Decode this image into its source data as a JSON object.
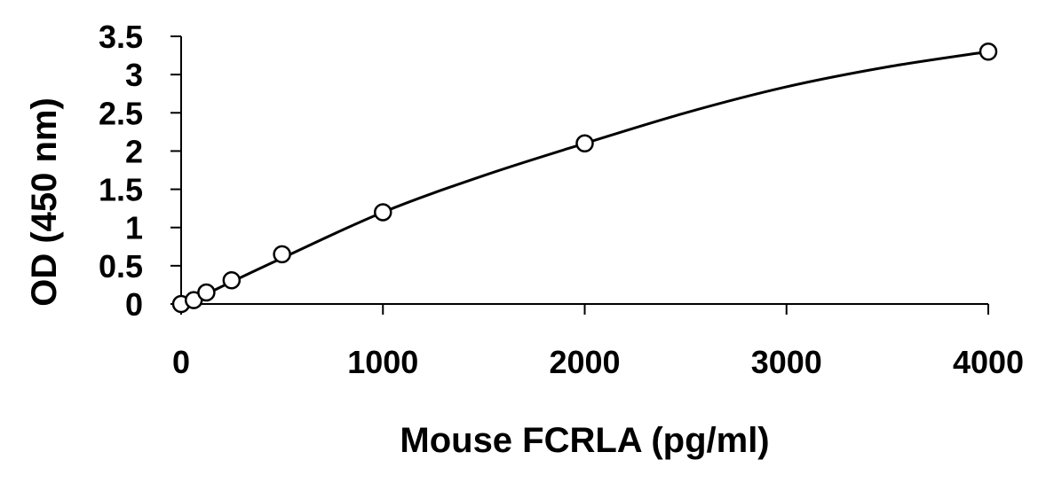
{
  "chart_data": {
    "type": "scatter",
    "title": "",
    "xlabel": "Mouse FCRLA (pg/ml)",
    "ylabel": "OD (450 nm)",
    "xlim": [
      0,
      4000
    ],
    "ylim": [
      0,
      3.5
    ],
    "x_ticks": [
      0,
      1000,
      2000,
      3000,
      4000
    ],
    "y_ticks": [
      0,
      0.5,
      1,
      1.5,
      2,
      2.5,
      3,
      3.5
    ],
    "x_tick_labels": [
      "0",
      "1000",
      "2000",
      "3000",
      "4000"
    ],
    "y_tick_labels": [
      "0",
      "0.5",
      "1",
      "1.5",
      "2",
      "2.5",
      "3",
      "3.5"
    ],
    "grid": false,
    "legend": "none",
    "series": [
      {
        "marker": "open-circle",
        "x": [
          0,
          62.5,
          125,
          250,
          500,
          1000,
          2000,
          4000
        ],
        "y": [
          0.0,
          0.05,
          0.15,
          0.31,
          0.65,
          1.2,
          2.1,
          3.3
        ]
      }
    ],
    "fit_curve": {
      "kind": "smooth fit through points",
      "x": [
        0,
        62.5,
        125,
        250,
        500,
        1000,
        1500,
        2000,
        2500,
        3000,
        3500,
        4000
      ],
      "y": [
        0.0,
        0.06,
        0.13,
        0.29,
        0.6,
        1.2,
        1.68,
        2.1,
        2.5,
        2.84,
        3.1,
        3.3
      ]
    },
    "colors": {
      "axis": "#000000",
      "marker": "#000000",
      "curve": "#000000"
    }
  }
}
